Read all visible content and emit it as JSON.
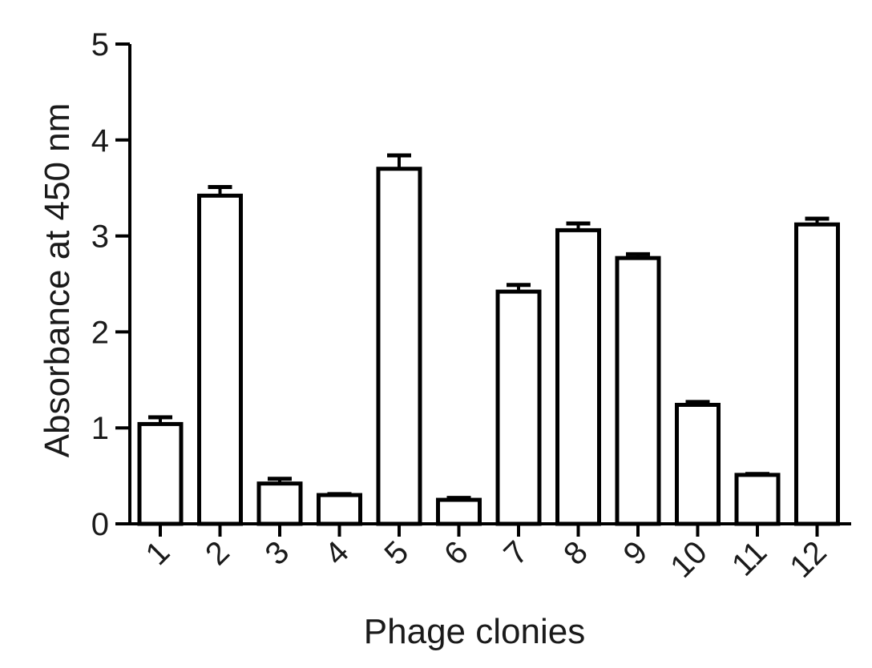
{
  "chart_data": {
    "type": "bar",
    "xlabel": "Phage clonies",
    "ylabel": "Absorbance at 450 nm",
    "ylim": [
      0,
      5
    ],
    "yticks": [
      0,
      1,
      2,
      3,
      4,
      5
    ],
    "categories": [
      "1",
      "2",
      "3",
      "4",
      "5",
      "6",
      "7",
      "8",
      "9",
      "10",
      "11",
      "12"
    ],
    "values": [
      1.04,
      3.42,
      0.42,
      0.3,
      3.7,
      0.25,
      2.42,
      3.06,
      2.77,
      1.24,
      0.51,
      3.12
    ],
    "errors": [
      0.07,
      0.09,
      0.05,
      0.01,
      0.14,
      0.02,
      0.07,
      0.07,
      0.04,
      0.03,
      0.01,
      0.06
    ],
    "bar_fill": "#ffffff",
    "bar_stroke": "#000000",
    "grid": false
  }
}
